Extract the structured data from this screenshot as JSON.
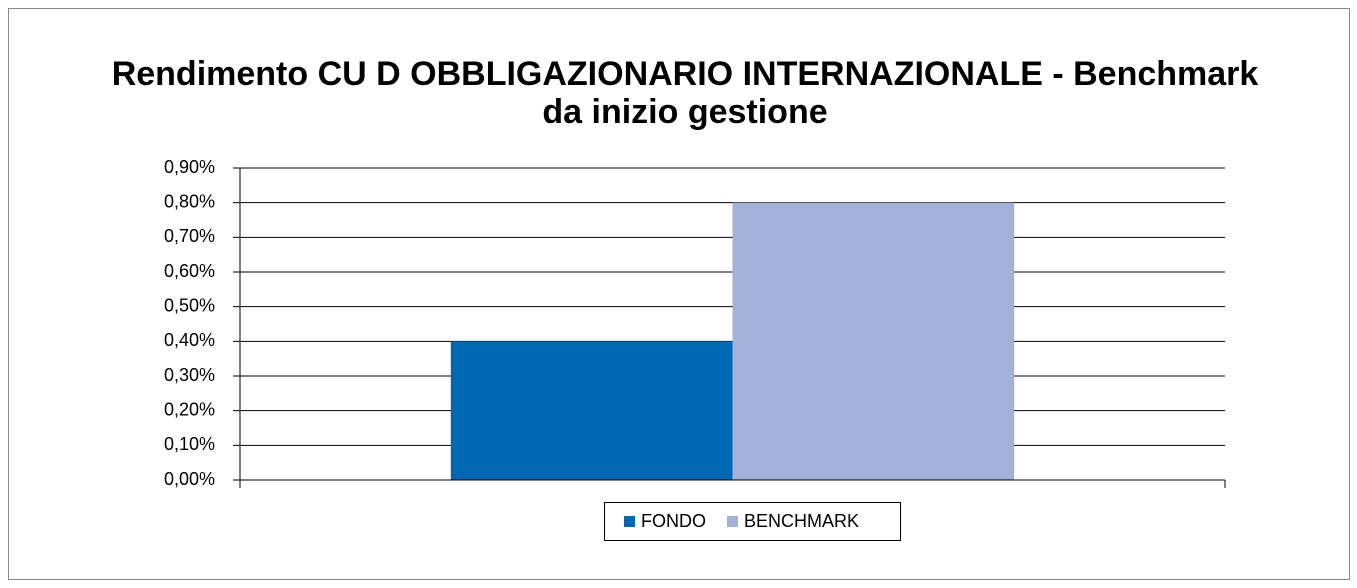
{
  "chart_data": {
    "type": "bar",
    "title": [
      "Rendimento CU D OBBLIGAZIONARIO INTERNAZIONALE - Benchmark",
      "da inizio gestione"
    ],
    "categories": [
      null
    ],
    "series": [
      {
        "name": "FONDO",
        "color": "#0068b3",
        "values": [
          0.4
        ]
      },
      {
        "name": "BENCHMARK",
        "color": "#a3b1d9",
        "values": [
          0.8
        ]
      }
    ],
    "ylim": [
      0,
      0.9
    ],
    "yticks": [
      {
        "value": 0,
        "label": "0,00%"
      },
      {
        "value": 0.1,
        "label": "0,10%"
      },
      {
        "value": 0.2,
        "label": "0,20%"
      },
      {
        "value": 0.3,
        "label": "0,30%"
      },
      {
        "value": 0.4,
        "label": "0,40%"
      },
      {
        "value": 0.5,
        "label": "0,50%"
      },
      {
        "value": 0.6,
        "label": "0,60%"
      },
      {
        "value": 0.7,
        "label": "0,70%"
      },
      {
        "value": 0.8,
        "label": "0,80%"
      },
      {
        "value": 0.9,
        "label": "0,90%"
      }
    ],
    "grid": true,
    "legend": "bottom"
  }
}
